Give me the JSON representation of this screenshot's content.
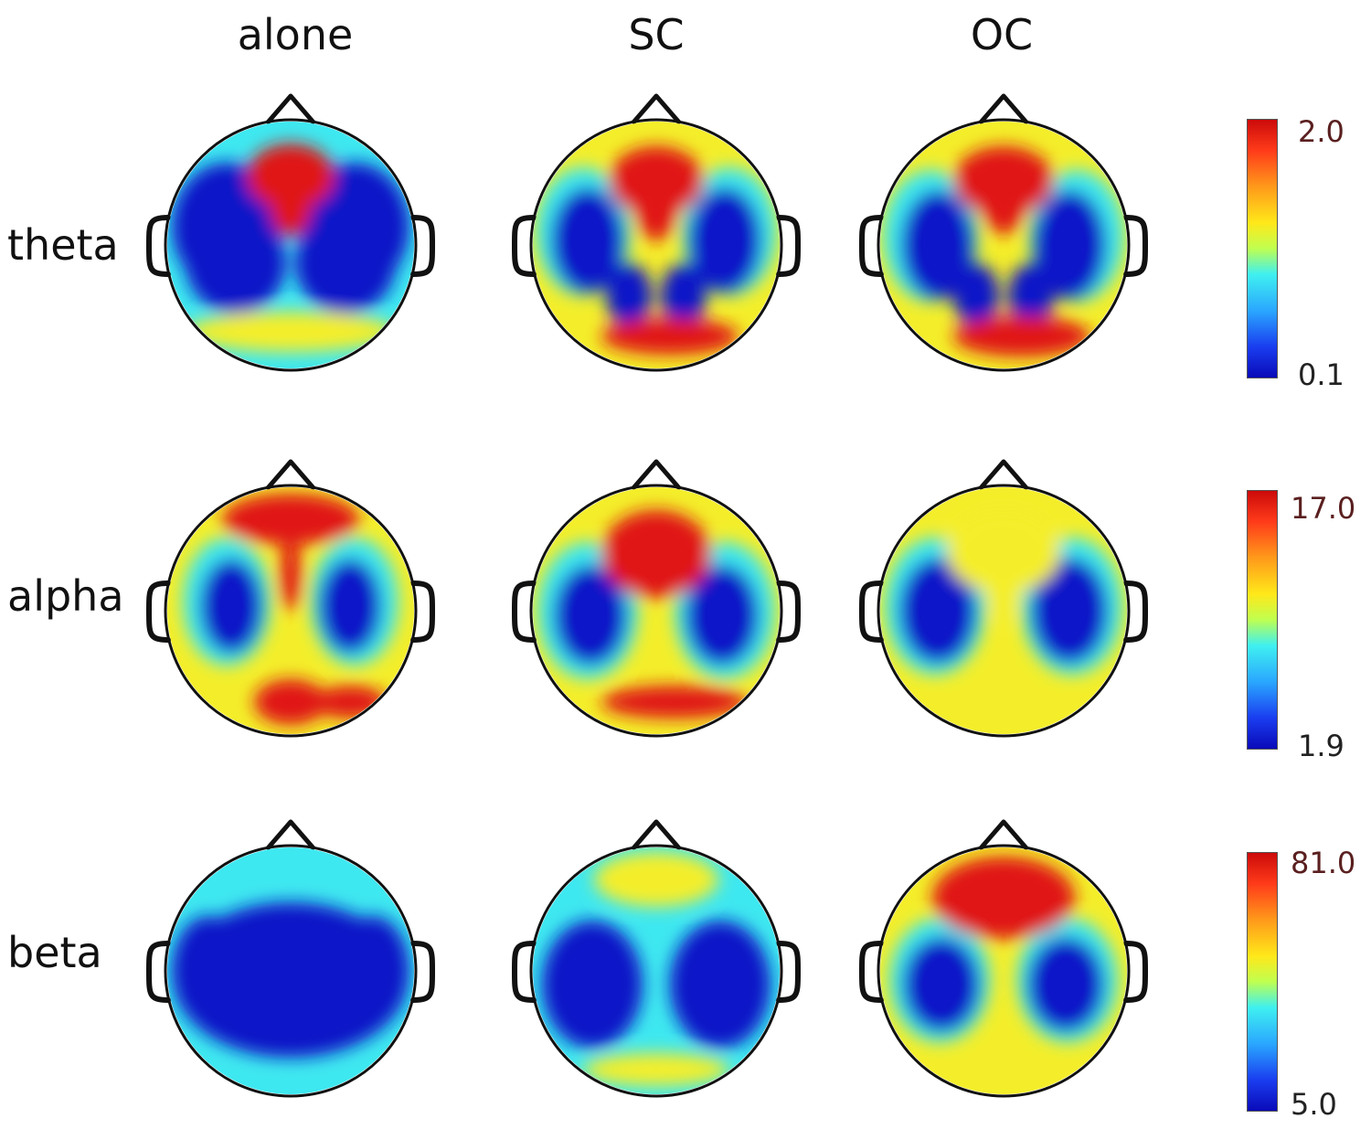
{
  "columns": [
    "alone",
    "SC",
    "OC"
  ],
  "rows": [
    {
      "label": "theta",
      "scale_max": "2.0",
      "scale_min": "0.1"
    },
    {
      "label": "alpha",
      "scale_max": "17.0",
      "scale_min": "1.9"
    },
    {
      "label": "beta",
      "scale_max": "81.0",
      "scale_min": "5.0"
    }
  ],
  "colors": {
    "low": "#0a14c8",
    "mid_low": "#3ee8f0",
    "mid": "#f4ee2a",
    "high": "#e01212"
  }
}
